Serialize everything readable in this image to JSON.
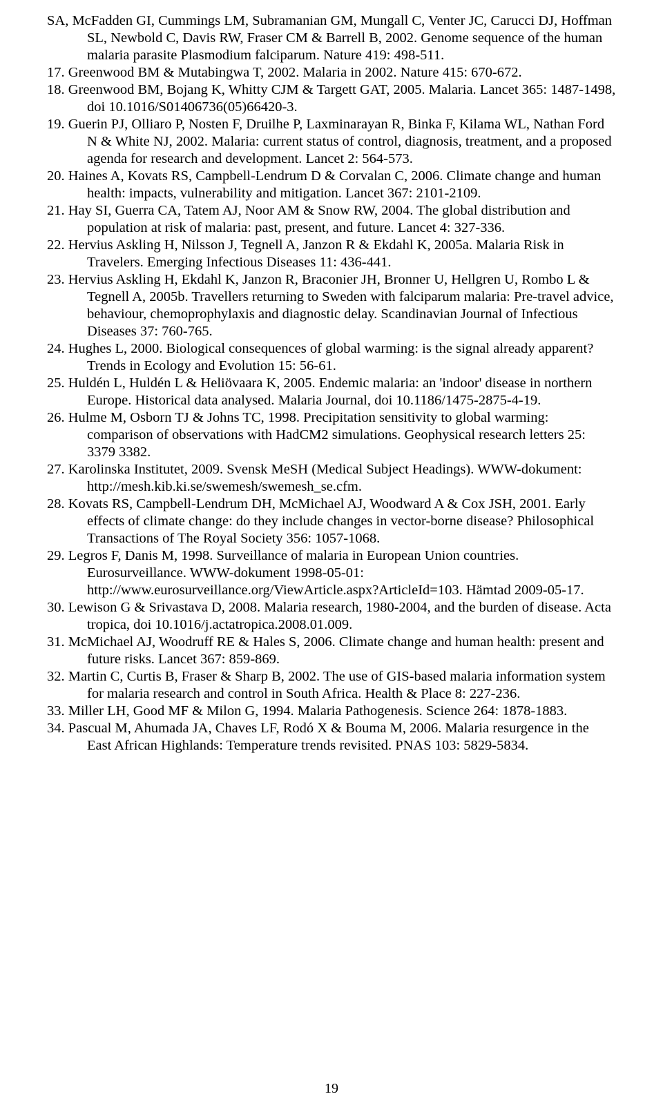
{
  "refs": [
    "SA, McFadden GI, Cummings LM, Subramanian GM, Mungall C, Venter JC, Carucci DJ, Hoffman SL, Newbold C, Davis RW, Fraser CM & Barrell B, 2002. Genome sequence of the human malaria parasite Plasmodium falciparum. Nature 419: 498-511.",
    "17. Greenwood BM & Mutabingwa T, 2002. Malaria in 2002. Nature 415: 670-672.",
    "18. Greenwood BM, Bojang K, Whitty CJM & Targett GAT, 2005. Malaria. Lancet 365: 1487-1498, doi 10.1016/S01406736(05)66420-3.",
    "19. Guerin PJ, Olliaro P, Nosten F, Druilhe P, Laxminarayan R, Binka F, Kilama WL, Nathan Ford N & White NJ, 2002. Malaria: current status of control, diagnosis, treatment, and a proposed agenda for research and development. Lancet 2: 564-573.",
    "20. Haines A, Kovats RS, Campbell-Lendrum D & Corvalan C, 2006. Climate change and human health: impacts, vulnerability and mitigation. Lancet 367: 2101-2109.",
    "21. Hay SI, Guerra CA, Tatem AJ, Noor AM & Snow RW, 2004. The global distribution and population at risk of malaria: past, present, and future. Lancet 4: 327-336.",
    "22. Hervius Askling H, Nilsson J, Tegnell A, Janzon R & Ekdahl K, 2005a. Malaria Risk in Travelers. Emerging Infectious Diseases 11: 436-441.",
    "23. Hervius Askling H, Ekdahl K, Janzon R, Braconier JH, Bronner U, Hellgren U, Rombo L & Tegnell A, 2005b. Travellers returning to Sweden with falciparum malaria: Pre-travel advice, behaviour, chemoprophylaxis and diagnostic delay. Scandinavian Journal of Infectious Diseases 37: 760-765.",
    "24. Hughes L, 2000. Biological consequences of global warming: is the signal already apparent? Trends in Ecology and Evolution 15: 56-61.",
    "25. Huldén L, Huldén L & Heliövaara K, 2005. Endemic malaria: an 'indoor' disease in northern Europe. Historical data analysed. Malaria Journal, doi 10.1186/1475-2875-4-19.",
    "26. Hulme M, Osborn TJ & Johns TC, 1998. Precipitation sensitivity to global warming: comparison of observations with HadCM2 simulations. Geophysical research letters 25: 3379 3382.",
    "27. Karolinska Institutet, 2009. Svensk MeSH (Medical Subject Headings). WWW-dokument: http://mesh.kib.ki.se/swemesh/swemesh_se.cfm.",
    "28. Kovats RS, Campbell-Lendrum DH, McMichael AJ, Woodward A & Cox JSH, 2001. Early effects of climate change: do they include changes in vector-borne disease? Philosophical Transactions of The Royal Society 356: 1057-1068.",
    "29. Legros F, Danis M, 1998. Surveillance of malaria in European Union countries. Eurosurveillance. WWW-dokument 1998-05-01: http://www.eurosurveillance.org/ViewArticle.aspx?ArticleId=103. Hämtad 2009-05-17.",
    "30. Lewison G & Srivastava D, 2008. Malaria research, 1980-2004, and the burden of disease. Acta tropica, doi 10.1016/j.actatropica.2008.01.009.",
    "31. McMichael AJ, Woodruff RE & Hales S, 2006. Climate change and human health: present and future risks. Lancet 367: 859-869.",
    "32. Martin C, Curtis B, Fraser & Sharp B, 2002. The use of GIS-based malaria information system for malaria research and control in South Africa. Health & Place 8: 227-236.",
    "33. Miller LH, Good MF & Milon G, 1994. Malaria Pathogenesis. Science 264: 1878-1883.",
    "34. Pascual M, Ahumada JA, Chaves LF, Rodó X & Bouma M, 2006. Malaria resurgence in the East African Highlands: Temperature trends revisited. PNAS 103: 5829-5834."
  ],
  "pageNumber": "19"
}
